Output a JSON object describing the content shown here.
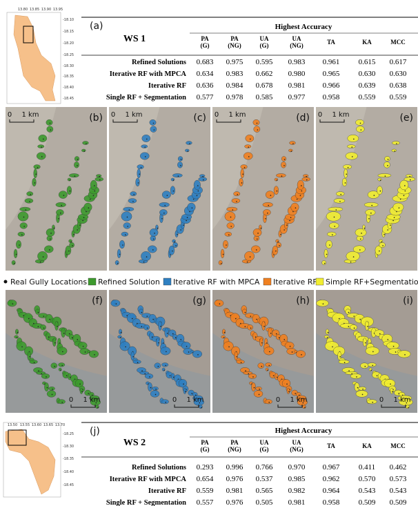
{
  "locator_ws1": {
    "lon_ticks": [
      "13.80",
      "13.85",
      "13.90",
      "13.95"
    ],
    "lat_ticks": [
      "-18.10",
      "-18.15",
      "-18.20",
      "-18.25",
      "-18.30",
      "-18.35",
      "-18.40",
      "-18.45"
    ]
  },
  "table_ws1": {
    "label": "(a)",
    "site": "WS 1",
    "group_header": "Highest Accuracy",
    "columns": [
      [
        "PA",
        "(G)"
      ],
      [
        "PA",
        "(NG)"
      ],
      [
        "UA",
        "(G)"
      ],
      [
        "UA",
        "(NG)"
      ],
      [
        "TA"
      ],
      [
        "KA"
      ],
      [
        "MCC"
      ]
    ],
    "rows": [
      {
        "method": "Refined Solutions",
        "values": [
          "0.683",
          "0.975",
          "0.595",
          "0.983",
          "0.961",
          "0.615",
          "0.617"
        ]
      },
      {
        "method": "Iterative RF with MPCA",
        "values": [
          "0.634",
          "0.983",
          "0.662",
          "0.980",
          "0.965",
          "0.630",
          "0.630"
        ]
      },
      {
        "method": "Iterative RF",
        "values": [
          "0.636",
          "0.984",
          "0.678",
          "0.981",
          "0.966",
          "0.639",
          "0.638"
        ]
      },
      {
        "method": "Single RF + Segmentation",
        "values": [
          "0.577",
          "0.978",
          "0.585",
          "0.977",
          "0.958",
          "0.559",
          "0.559"
        ]
      }
    ]
  },
  "panels_top": [
    {
      "label": "(b)",
      "scale_zero": "0",
      "scale_length": "1 km"
    },
    {
      "label": "(c)",
      "scale_zero": "0",
      "scale_length": "1 km"
    },
    {
      "label": "(d)",
      "scale_zero": "0",
      "scale_length": "1 km"
    },
    {
      "label": "(e)",
      "scale_zero": "0",
      "scale_length": "1 km"
    }
  ],
  "legend": [
    {
      "name": "Real Gully Locations",
      "color": "#111111"
    },
    {
      "name": "Refined Solution",
      "color": "#3d9a2e"
    },
    {
      "name": "Iterative RF with MPCA",
      "color": "#2f80c2"
    },
    {
      "name": "Iterative RF",
      "color": "#f08020"
    },
    {
      "name": "Simple RF+Segmentation",
      "color": "#f2ee30"
    }
  ],
  "panels_bottom": [
    {
      "label": "(f)",
      "scale_zero": "0",
      "scale_length": "1 km"
    },
    {
      "label": "(g)",
      "scale_zero": "0",
      "scale_length": "1 km"
    },
    {
      "label": "(h)",
      "scale_zero": "0",
      "scale_length": "1 km"
    },
    {
      "label": "(i)",
      "scale_zero": "0",
      "scale_length": "1 km"
    }
  ],
  "locator_ws2": {
    "lon_ticks": [
      "13.50",
      "13.55",
      "13.60",
      "13.65",
      "13.70"
    ],
    "lat_ticks": [
      "-18.25",
      "-18.30",
      "-18.35",
      "-18.40",
      "-18.45"
    ]
  },
  "table_ws2": {
    "label": "(j)",
    "site": "WS 2",
    "group_header": "Highest Accuracy",
    "columns": [
      [
        "PA",
        "(G)"
      ],
      [
        "PA",
        "(NG)"
      ],
      [
        "UA",
        "(G)"
      ],
      [
        "UA",
        "(NG)"
      ],
      [
        "TA"
      ],
      [
        "KA"
      ],
      [
        "MCC"
      ]
    ],
    "rows": [
      {
        "method": "Refined Solutions",
        "values": [
          "0.293",
          "0.996",
          "0.766",
          "0.970",
          "0.967",
          "0.411",
          "0.462"
        ]
      },
      {
        "method": "Iterative RF with MPCA",
        "values": [
          "0.654",
          "0.976",
          "0.537",
          "0.985",
          "0.962",
          "0.570",
          "0.573"
        ]
      },
      {
        "method": "Iterative RF",
        "values": [
          "0.559",
          "0.981",
          "0.565",
          "0.982",
          "0.964",
          "0.543",
          "0.543"
        ]
      },
      {
        "method": "Single RF + Segmentation",
        "values": [
          "0.557",
          "0.976",
          "0.505",
          "0.981",
          "0.958",
          "0.509",
          "0.509"
        ]
      }
    ]
  }
}
